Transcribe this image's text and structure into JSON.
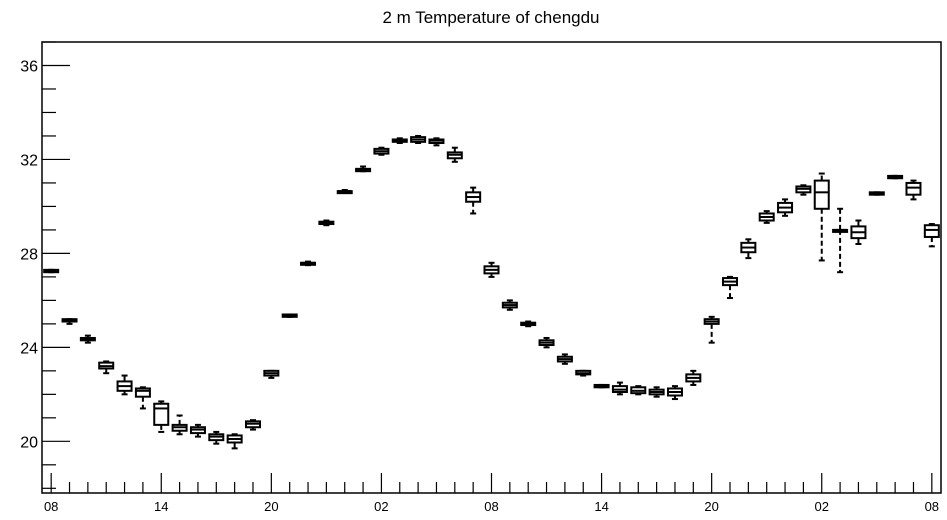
{
  "chart_data": {
    "type": "boxplot",
    "title": "2 m Temperature of chengdu",
    "xlabel": "",
    "ylabel": "",
    "ylim": [
      17.8,
      37.0
    ],
    "y_ticks": [
      20,
      24,
      28,
      32,
      36
    ],
    "y_tick_labels": [
      "20",
      "24",
      "28",
      "32",
      "36"
    ],
    "x_tick_labels": [
      "08",
      "14",
      "20",
      "02",
      "08",
      "14",
      "20",
      "02",
      "08"
    ],
    "x_tick_hours": [
      0,
      6,
      12,
      18,
      24,
      30,
      36,
      42,
      48
    ],
    "x_range_hours": [
      -0.5,
      48.5
    ],
    "grid": false,
    "boxes": [
      {
        "hour": 0,
        "min": 27.2,
        "q1": 27.2,
        "median": 27.25,
        "q3": 27.3,
        "max": 27.3
      },
      {
        "hour": 1,
        "min": 25.0,
        "q1": 25.1,
        "median": 25.15,
        "q3": 25.2,
        "max": 25.2
      },
      {
        "hour": 2,
        "min": 24.2,
        "q1": 24.3,
        "median": 24.35,
        "q3": 24.4,
        "max": 24.5
      },
      {
        "hour": 3,
        "min": 22.9,
        "q1": 23.1,
        "median": 23.2,
        "q3": 23.35,
        "max": 23.4
      },
      {
        "hour": 4,
        "min": 22.0,
        "q1": 22.15,
        "median": 22.35,
        "q3": 22.55,
        "max": 22.8
      },
      {
        "hour": 5,
        "min": 21.4,
        "q1": 21.9,
        "median": 22.15,
        "q3": 22.25,
        "max": 22.3
      },
      {
        "hour": 6,
        "min": 20.4,
        "q1": 20.7,
        "median": 21.4,
        "q3": 21.6,
        "max": 21.7
      },
      {
        "hour": 7,
        "min": 20.3,
        "q1": 20.45,
        "median": 20.6,
        "q3": 20.7,
        "max": 21.1
      },
      {
        "hour": 8,
        "min": 20.2,
        "q1": 20.35,
        "median": 20.5,
        "q3": 20.6,
        "max": 20.7
      },
      {
        "hour": 9,
        "min": 19.9,
        "q1": 20.05,
        "median": 20.2,
        "q3": 20.3,
        "max": 20.4
      },
      {
        "hour": 10,
        "min": 19.7,
        "q1": 19.95,
        "median": 20.1,
        "q3": 20.25,
        "max": 20.3
      },
      {
        "hour": 11,
        "min": 20.5,
        "q1": 20.6,
        "median": 20.75,
        "q3": 20.85,
        "max": 20.9
      },
      {
        "hour": 12,
        "min": 22.7,
        "q1": 22.8,
        "median": 22.9,
        "q3": 23.0,
        "max": 23.0
      },
      {
        "hour": 13,
        "min": 25.3,
        "q1": 25.3,
        "median": 25.35,
        "q3": 25.4,
        "max": 25.4
      },
      {
        "hour": 14,
        "min": 27.5,
        "q1": 27.55,
        "median": 27.6,
        "q3": 27.6,
        "max": 27.65
      },
      {
        "hour": 15,
        "min": 29.2,
        "q1": 29.25,
        "median": 29.3,
        "q3": 29.35,
        "max": 29.4
      },
      {
        "hour": 16,
        "min": 30.6,
        "q1": 30.6,
        "median": 30.65,
        "q3": 30.65,
        "max": 30.7
      },
      {
        "hour": 17,
        "min": 31.5,
        "q1": 31.5,
        "median": 31.55,
        "q3": 31.6,
        "max": 31.7
      },
      {
        "hour": 18,
        "min": 32.2,
        "q1": 32.25,
        "median": 32.35,
        "q3": 32.45,
        "max": 32.5
      },
      {
        "hour": 19,
        "min": 32.7,
        "q1": 32.75,
        "median": 32.8,
        "q3": 32.85,
        "max": 32.9
      },
      {
        "hour": 20,
        "min": 32.7,
        "q1": 32.75,
        "median": 32.85,
        "q3": 32.95,
        "max": 33.0
      },
      {
        "hour": 21,
        "min": 32.6,
        "q1": 32.7,
        "median": 32.8,
        "q3": 32.85,
        "max": 32.9
      },
      {
        "hour": 22,
        "min": 31.9,
        "q1": 32.05,
        "median": 32.2,
        "q3": 32.3,
        "max": 32.5
      },
      {
        "hour": 23,
        "min": 29.7,
        "q1": 30.2,
        "median": 30.4,
        "q3": 30.6,
        "max": 30.8
      },
      {
        "hour": 24,
        "min": 27.0,
        "q1": 27.15,
        "median": 27.3,
        "q3": 27.45,
        "max": 27.6
      },
      {
        "hour": 25,
        "min": 25.6,
        "q1": 25.7,
        "median": 25.8,
        "q3": 25.9,
        "max": 26.0
      },
      {
        "hour": 26,
        "min": 24.9,
        "q1": 24.95,
        "median": 25.0,
        "q3": 25.05,
        "max": 25.1
      },
      {
        "hour": 27,
        "min": 24.0,
        "q1": 24.1,
        "median": 24.2,
        "q3": 24.3,
        "max": 24.4
      },
      {
        "hour": 28,
        "min": 23.3,
        "q1": 23.4,
        "median": 23.5,
        "q3": 23.6,
        "max": 23.7
      },
      {
        "hour": 29,
        "min": 22.8,
        "q1": 22.85,
        "median": 22.9,
        "q3": 23.0,
        "max": 23.0
      },
      {
        "hour": 30,
        "min": 22.3,
        "q1": 22.3,
        "median": 22.35,
        "q3": 22.4,
        "max": 22.4
      },
      {
        "hour": 31,
        "min": 22.0,
        "q1": 22.1,
        "median": 22.2,
        "q3": 22.35,
        "max": 22.5
      },
      {
        "hour": 32,
        "min": 22.0,
        "q1": 22.05,
        "median": 22.15,
        "q3": 22.3,
        "max": 22.35
      },
      {
        "hour": 33,
        "min": 21.9,
        "q1": 22.0,
        "median": 22.1,
        "q3": 22.2,
        "max": 22.3
      },
      {
        "hour": 34,
        "min": 21.8,
        "q1": 21.95,
        "median": 22.1,
        "q3": 22.25,
        "max": 22.35
      },
      {
        "hour": 35,
        "min": 22.4,
        "q1": 22.55,
        "median": 22.7,
        "q3": 22.85,
        "max": 23.0
      },
      {
        "hour": 36,
        "min": 24.2,
        "q1": 25.0,
        "median": 25.1,
        "q3": 25.2,
        "max": 25.3
      },
      {
        "hour": 37,
        "min": 26.1,
        "q1": 26.65,
        "median": 26.8,
        "q3": 26.95,
        "max": 27.0
      },
      {
        "hour": 38,
        "min": 27.8,
        "q1": 28.05,
        "median": 28.25,
        "q3": 28.45,
        "max": 28.6
      },
      {
        "hour": 39,
        "min": 29.3,
        "q1": 29.4,
        "median": 29.55,
        "q3": 29.7,
        "max": 29.8
      },
      {
        "hour": 40,
        "min": 29.6,
        "q1": 29.75,
        "median": 29.95,
        "q3": 30.15,
        "max": 30.3
      },
      {
        "hour": 41,
        "min": 30.5,
        "q1": 30.6,
        "median": 30.75,
        "q3": 30.85,
        "max": 30.9
      },
      {
        "hour": 42,
        "min": 27.7,
        "q1": 29.9,
        "median": 30.6,
        "q3": 31.1,
        "max": 31.4
      },
      {
        "hour": 43,
        "min": 27.2,
        "q1": 29.0,
        "median": 29.0,
        "q3": 29.0,
        "max": 29.9
      },
      {
        "hour": 44,
        "min": 28.4,
        "q1": 28.65,
        "median": 28.9,
        "q3": 29.15,
        "max": 29.4
      },
      {
        "hour": 45,
        "min": 30.5,
        "q1": 30.5,
        "median": 30.55,
        "q3": 30.6,
        "max": 30.6
      },
      {
        "hour": 46,
        "min": 31.2,
        "q1": 31.2,
        "median": 31.25,
        "q3": 31.3,
        "max": 31.3
      },
      {
        "hour": 47,
        "min": 30.3,
        "q1": 30.5,
        "median": 30.8,
        "q3": 31.0,
        "max": 31.1
      },
      {
        "hour": 48,
        "min": 28.3,
        "q1": 28.7,
        "median": 29.0,
        "q3": 29.2,
        "max": 29.25
      }
    ]
  }
}
